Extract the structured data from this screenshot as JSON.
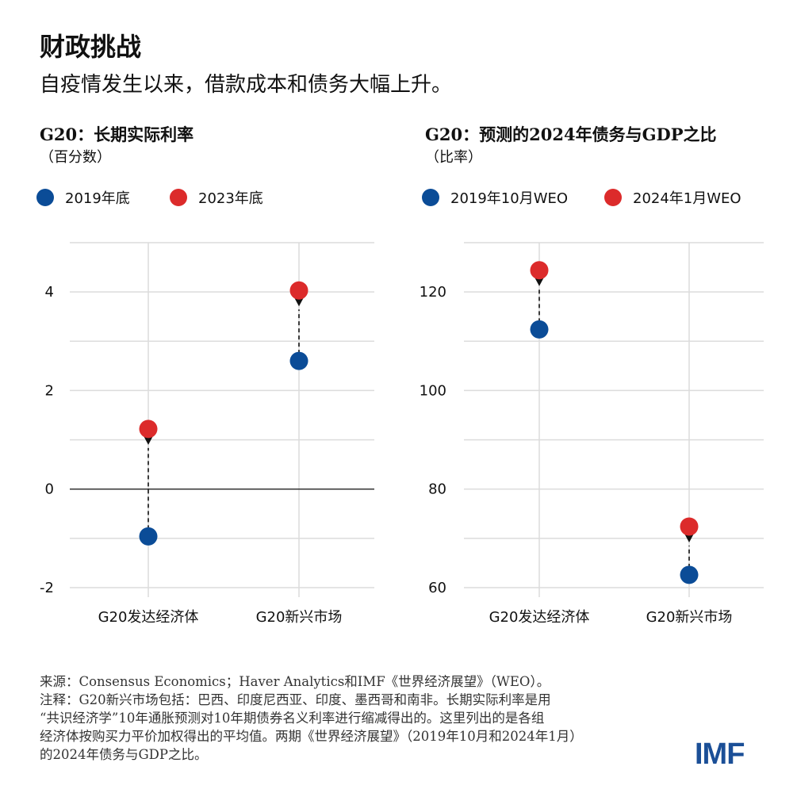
{
  "title": "财政挑战",
  "subtitle": "自疫情发生以来，借款成本和债务大幅上升。",
  "colors": {
    "blue": "#0b4c97",
    "red": "#dc2b2b",
    "grid": "#d9d9d9"
  },
  "chart_data": [
    {
      "type": "dot-arrow",
      "title": "G20：长期实际利率",
      "unit": "（百分数）",
      "categories": [
        "G20发达经济体",
        "G20新兴市场"
      ],
      "series": [
        {
          "name": "2019年底",
          "color": "#0b4c97",
          "values": [
            -0.96,
            2.6
          ]
        },
        {
          "name": "2023年底",
          "color": "#dc2b2b",
          "values": [
            1.22,
            4.03
          ]
        }
      ],
      "ylim": [
        -2,
        5
      ],
      "yticks": [
        -2,
        0,
        2,
        4
      ],
      "ytick_labels": [
        "-2",
        "0",
        "2",
        "4"
      ],
      "grid_step": 1,
      "zero_line": true
    },
    {
      "type": "dot-arrow",
      "title": "G20：预测的2024年债务与GDP之比",
      "unit": "（比率）",
      "categories": [
        "G20发达经济体",
        "G20新兴市场"
      ],
      "series": [
        {
          "name": "2019年10月WEO",
          "color": "#0b4c97",
          "values": [
            112.4,
            62.6
          ]
        },
        {
          "name": "2024年1月WEO",
          "color": "#dc2b2b",
          "values": [
            124.4,
            72.4
          ]
        }
      ],
      "ylim": [
        60,
        130
      ],
      "yticks": [
        60,
        80,
        100,
        120
      ],
      "ytick_labels": [
        "60",
        "80",
        "100",
        "120"
      ],
      "grid_step": 10,
      "zero_line": false
    }
  ],
  "footer": {
    "source": "来源：Consensus Economics；Haver Analytics和IMF《世界经济展望》（WEO）。",
    "note_lines": [
      "注释：G20新兴市场包括：巴西、印度尼西亚、印度、墨西哥和南非。长期实际利率是用",
      "“共识经济学”10年通胀预测对10年期债券名义利率进行缩减得出的。这里列出的是各组",
      "经济体按购买力平价加权得出的平均值。两期《世界经济展望》（2019年10月和2024年1月）",
      "的2024年债务与GDP之比。"
    ]
  },
  "logo": "IMF"
}
